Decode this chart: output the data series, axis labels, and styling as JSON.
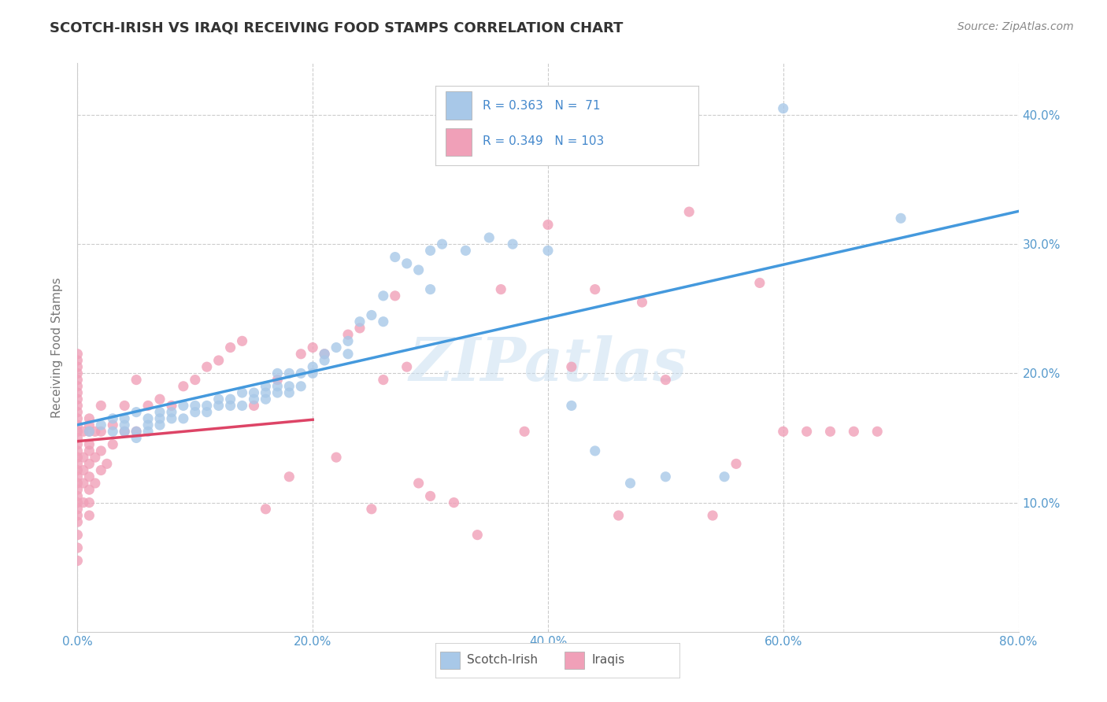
{
  "title": "SCOTCH-IRISH VS IRAQI RECEIVING FOOD STAMPS CORRELATION CHART",
  "source": "Source: ZipAtlas.com",
  "ylabel": "Receiving Food Stamps",
  "xlim": [
    0.0,
    0.8
  ],
  "ylim": [
    0.0,
    0.44
  ],
  "xtick_labels": [
    "0.0%",
    "20.0%",
    "40.0%",
    "60.0%",
    "80.0%"
  ],
  "xtick_vals": [
    0.0,
    0.2,
    0.4,
    0.6,
    0.8
  ],
  "ytick_labels": [
    "10.0%",
    "20.0%",
    "30.0%",
    "40.0%"
  ],
  "ytick_vals": [
    0.1,
    0.2,
    0.3,
    0.4
  ],
  "scotch_irish_color": "#a8c8e8",
  "iraqi_color": "#f0a0b8",
  "scotch_irish_line_color": "#4499dd",
  "iraqi_line_color": "#dd4466",
  "scotch_irish_line_dashed": false,
  "iraqi_line_dashed": false,
  "R_scotch": 0.363,
  "N_scotch": 71,
  "R_iraqi": 0.349,
  "N_iraqi": 103,
  "watermark": "ZIPatlas",
  "legend_scotch": "Scotch-Irish",
  "legend_iraqi": "Iraqis",
  "background_color": "#ffffff",
  "grid_color": "#cccccc",
  "tick_color": "#5599cc",
  "scotch_irish_x": [
    0.01,
    0.02,
    0.03,
    0.03,
    0.04,
    0.04,
    0.04,
    0.05,
    0.05,
    0.05,
    0.06,
    0.06,
    0.06,
    0.07,
    0.07,
    0.07,
    0.08,
    0.08,
    0.09,
    0.09,
    0.1,
    0.1,
    0.11,
    0.11,
    0.12,
    0.12,
    0.13,
    0.13,
    0.14,
    0.14,
    0.15,
    0.15,
    0.16,
    0.16,
    0.16,
    0.17,
    0.17,
    0.17,
    0.18,
    0.18,
    0.18,
    0.19,
    0.19,
    0.2,
    0.2,
    0.21,
    0.21,
    0.22,
    0.23,
    0.23,
    0.24,
    0.25,
    0.26,
    0.26,
    0.27,
    0.28,
    0.29,
    0.3,
    0.3,
    0.31,
    0.33,
    0.35,
    0.37,
    0.4,
    0.42,
    0.44,
    0.47,
    0.5,
    0.55,
    0.6,
    0.7
  ],
  "scotch_irish_y": [
    0.155,
    0.16,
    0.155,
    0.165,
    0.155,
    0.16,
    0.165,
    0.15,
    0.155,
    0.17,
    0.155,
    0.16,
    0.165,
    0.16,
    0.165,
    0.17,
    0.165,
    0.17,
    0.165,
    0.175,
    0.17,
    0.175,
    0.17,
    0.175,
    0.175,
    0.18,
    0.175,
    0.18,
    0.175,
    0.185,
    0.18,
    0.185,
    0.18,
    0.185,
    0.19,
    0.185,
    0.19,
    0.2,
    0.185,
    0.19,
    0.2,
    0.19,
    0.2,
    0.2,
    0.205,
    0.21,
    0.215,
    0.22,
    0.215,
    0.225,
    0.24,
    0.245,
    0.24,
    0.26,
    0.29,
    0.285,
    0.28,
    0.265,
    0.295,
    0.3,
    0.295,
    0.305,
    0.3,
    0.295,
    0.175,
    0.14,
    0.115,
    0.12,
    0.12,
    0.405,
    0.32
  ],
  "iraqi_x": [
    0.0,
    0.0,
    0.0,
    0.0,
    0.0,
    0.0,
    0.0,
    0.0,
    0.0,
    0.0,
    0.0,
    0.0,
    0.0,
    0.0,
    0.0,
    0.0,
    0.0,
    0.0,
    0.0,
    0.0,
    0.0,
    0.0,
    0.0,
    0.0,
    0.0,
    0.0,
    0.0,
    0.0,
    0.0,
    0.0,
    0.005,
    0.005,
    0.005,
    0.005,
    0.005,
    0.01,
    0.01,
    0.01,
    0.01,
    0.01,
    0.01,
    0.01,
    0.01,
    0.01,
    0.01,
    0.015,
    0.015,
    0.015,
    0.02,
    0.02,
    0.02,
    0.02,
    0.025,
    0.03,
    0.03,
    0.04,
    0.04,
    0.05,
    0.05,
    0.06,
    0.07,
    0.08,
    0.09,
    0.1,
    0.11,
    0.12,
    0.13,
    0.14,
    0.15,
    0.16,
    0.17,
    0.18,
    0.19,
    0.2,
    0.21,
    0.22,
    0.23,
    0.24,
    0.25,
    0.26,
    0.27,
    0.28,
    0.29,
    0.3,
    0.32,
    0.34,
    0.36,
    0.38,
    0.4,
    0.42,
    0.44,
    0.46,
    0.48,
    0.5,
    0.52,
    0.54,
    0.56,
    0.58,
    0.6,
    0.62,
    0.64,
    0.66,
    0.68
  ],
  "iraqi_y": [
    0.055,
    0.065,
    0.075,
    0.085,
    0.09,
    0.095,
    0.1,
    0.105,
    0.11,
    0.115,
    0.12,
    0.125,
    0.13,
    0.135,
    0.14,
    0.145,
    0.15,
    0.155,
    0.16,
    0.165,
    0.17,
    0.175,
    0.18,
    0.185,
    0.19,
    0.195,
    0.2,
    0.205,
    0.21,
    0.215,
    0.1,
    0.115,
    0.125,
    0.135,
    0.155,
    0.09,
    0.1,
    0.11,
    0.12,
    0.13,
    0.14,
    0.145,
    0.155,
    0.16,
    0.165,
    0.115,
    0.135,
    0.155,
    0.125,
    0.14,
    0.155,
    0.175,
    0.13,
    0.145,
    0.16,
    0.155,
    0.175,
    0.155,
    0.195,
    0.175,
    0.18,
    0.175,
    0.19,
    0.195,
    0.205,
    0.21,
    0.22,
    0.225,
    0.175,
    0.095,
    0.195,
    0.12,
    0.215,
    0.22,
    0.215,
    0.135,
    0.23,
    0.235,
    0.095,
    0.195,
    0.26,
    0.205,
    0.115,
    0.105,
    0.1,
    0.075,
    0.265,
    0.155,
    0.315,
    0.205,
    0.265,
    0.09,
    0.255,
    0.195,
    0.325,
    0.09,
    0.13,
    0.27,
    0.155,
    0.155,
    0.155,
    0.155,
    0.155
  ]
}
